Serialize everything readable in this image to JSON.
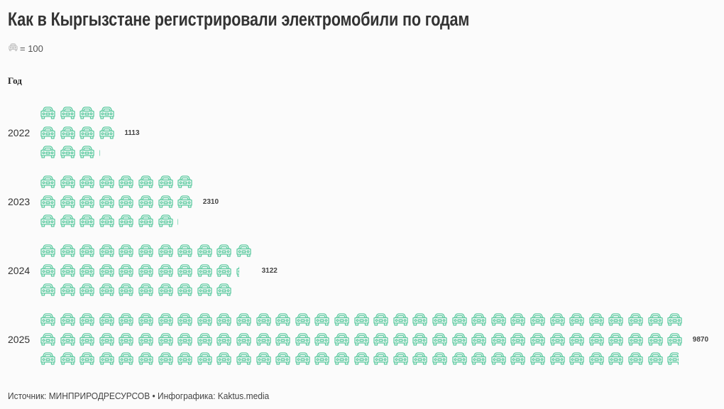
{
  "title": "Как в Кыргызстане регистрировали электромобили по годам",
  "legend": {
    "icon": "car-icon",
    "text": "= 100",
    "icon_color": "#b8b8b8"
  },
  "axis_label": "Год",
  "icon_color": "#5ccaa0",
  "footer": "Источник: МИНПРИРОДРЕСУРСОВ • Инфографика: Kaktus.media",
  "groups": [
    {
      "year": "2022",
      "value": 1113,
      "value_label": "1113"
    },
    {
      "year": "2023",
      "value": 2310,
      "value_label": "2310"
    },
    {
      "year": "2024",
      "value": 3122,
      "value_label": "3122"
    },
    {
      "year": "2025",
      "value": 9870,
      "value_label": "9870"
    }
  ],
  "chart_data": {
    "type": "pictogram",
    "title": "Как в Кыргызстане регистрировали электромобили по годам",
    "unit": "1 icon = 100 electric vehicles",
    "xlabel": "",
    "ylabel": "Год",
    "categories": [
      "2022",
      "2023",
      "2024",
      "2025"
    ],
    "values": [
      1113,
      2310,
      3122,
      9870
    ],
    "icon_rows_per_category": 3,
    "source": "МИНПРИРОДРЕСУРСОВ",
    "credit": "Kaktus.media"
  }
}
